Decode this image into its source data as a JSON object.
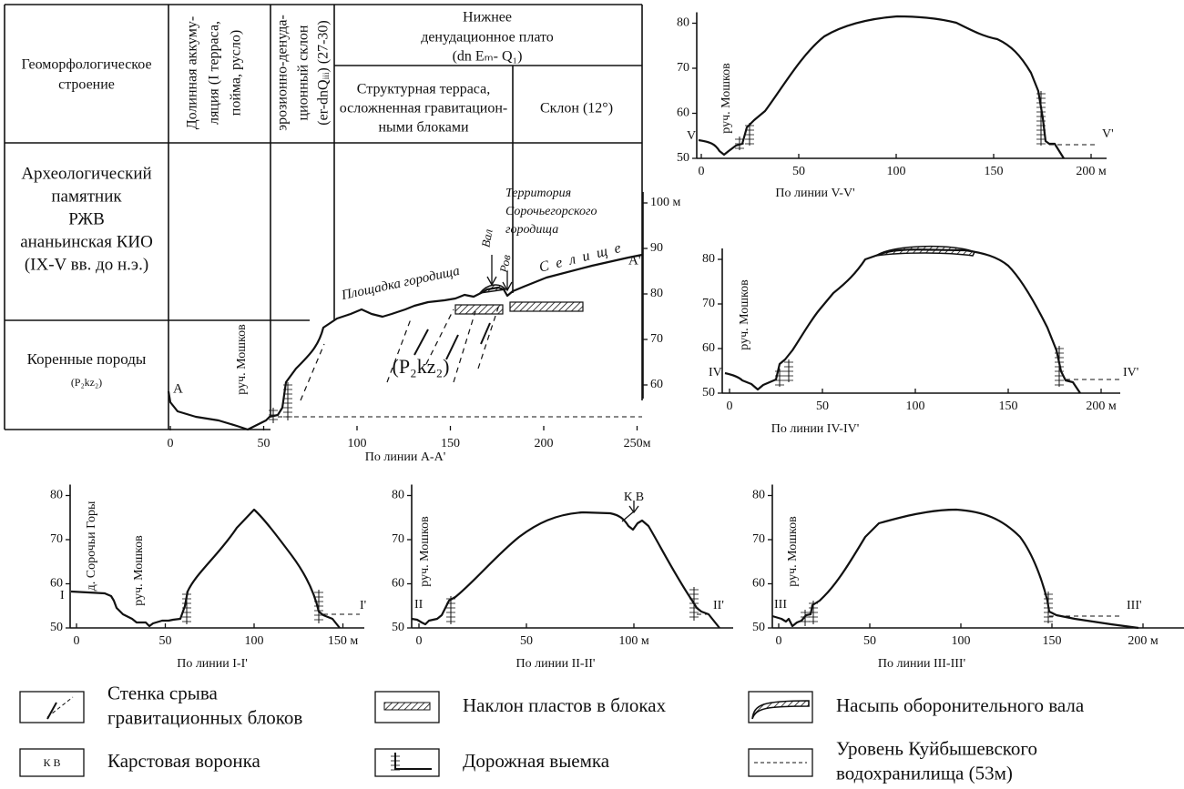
{
  "table": {
    "row_labels": {
      "geomorphology": [
        "Геоморфологическое",
        "строение"
      ],
      "archaeology": [
        "Археологический",
        "памятник",
        "РЖВ",
        "ананьинская КИО",
        "(IX-V вв. до н.э.)"
      ],
      "bedrock": [
        "Коренные породы",
        "(P₂kz₂)"
      ]
    },
    "columns": {
      "valley": [
        "Долинная аккуму-",
        "ляция (I терраса,",
        "пойма, русло)"
      ],
      "slope": [
        "эрозионно-денуда-",
        "ционный склон",
        "(er-dnQᵢᵢᵢ) (27-30)"
      ],
      "plateau": [
        "Нижнее",
        "денудационное плато",
        "(dn Eₘ- Q₁)"
      ],
      "terrace": [
        "Структурная терраса,",
        "осложненная гравитацион-",
        "ными блоками"
      ],
      "side_slope": "Склон (12°)"
    }
  },
  "profiles": [
    {
      "title": "По линии A-A'",
      "xticks": [
        0,
        50,
        100,
        150,
        200,
        {
          "value": 250,
          "label": "250м"
        }
      ],
      "yticks": [
        {
          "value": 100,
          "label": "100 м"
        },
        90,
        80,
        70,
        60
      ],
      "labels": [
        "A",
        "A'",
        "руч. Мошков",
        "Территория",
        "Сорочьегорского",
        "городища",
        "Площадка городища",
        "Вал",
        "Ров",
        "С е л и щ е",
        "(P₂kz₂)"
      ]
    },
    {
      "title": "По линии V-V'",
      "xticks": [
        0,
        50,
        100,
        150,
        {
          "value": 200,
          "label": "200 м"
        }
      ],
      "yticks": [
        50,
        60,
        70,
        80
      ],
      "labels": [
        "V",
        "V'",
        "руч. Мошков"
      ]
    },
    {
      "title": "По линии IV-IV'",
      "xticks": [
        0,
        50,
        100,
        150,
        {
          "value": 200,
          "label": "200 м"
        }
      ],
      "yticks": [
        50,
        60,
        70,
        80
      ],
      "labels": [
        "IV",
        "IV'",
        "руч. Мошков"
      ]
    },
    {
      "title": "По линии I-I'",
      "xticks": [
        0,
        50,
        100,
        {
          "value": 150,
          "label": "150 м"
        }
      ],
      "yticks": [
        50,
        60,
        70,
        80
      ],
      "labels": [
        "I",
        "I'",
        "руч. Мошков",
        "д. Сорочьи Горы"
      ]
    },
    {
      "title": "По линии II-II'",
      "xticks": [
        0,
        50,
        {
          "value": 100,
          "label": "100 м"
        }
      ],
      "yticks": [
        50,
        60,
        70,
        80
      ],
      "labels": [
        "II",
        "II'",
        "руч. Мошков",
        "К В"
      ]
    },
    {
      "title": "По линии III-III'",
      "xticks": [
        0,
        50,
        100,
        150,
        {
          "value": 200,
          "label": "200 м"
        }
      ],
      "yticks": [
        50,
        60,
        70,
        80
      ],
      "labels": [
        "III",
        "III'",
        "руч. Мошков"
      ]
    }
  ],
  "legend": [
    {
      "label": [
        "Стенка срыва",
        "гравитационных блоков"
      ]
    },
    {
      "symbol": "К В",
      "label": [
        "Карстовая воронка"
      ]
    },
    {
      "label": [
        "Наклон пластов в блоках"
      ]
    },
    {
      "label": [
        "Дорожная выемка"
      ]
    },
    {
      "label": [
        "Насыпь оборонительного вала"
      ]
    },
    {
      "label": [
        "Уровень Куйбышевского",
        "водохранилища (53м)"
      ]
    }
  ]
}
